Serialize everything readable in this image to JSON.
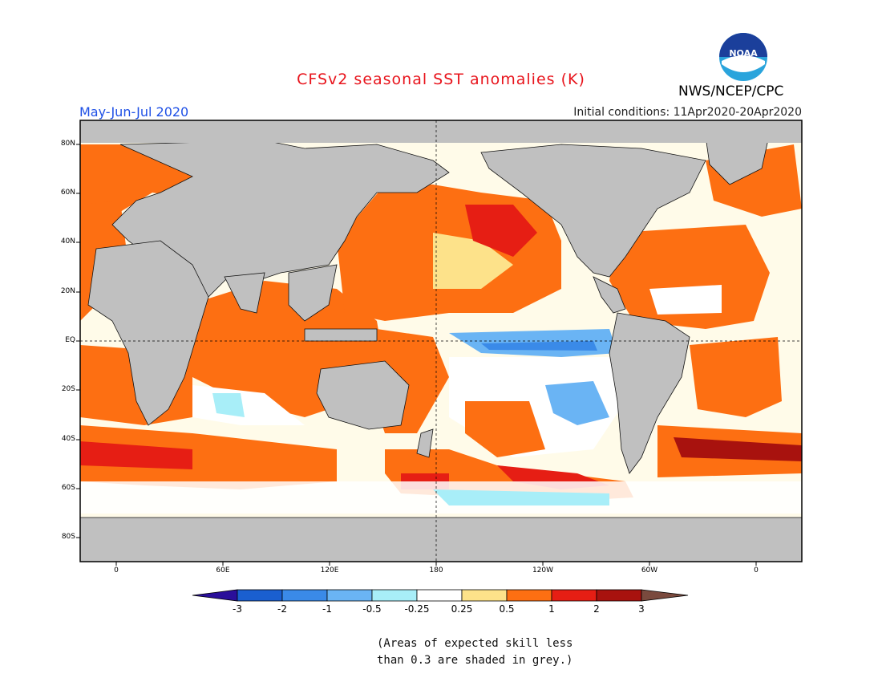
{
  "header": {
    "title": "CFSv2 seasonal SST anomalies (K)",
    "title_color": "#e8141c",
    "org": "NWS/NCEP/CPC",
    "season": "May-Jun-Jul 2020",
    "season_color": "#1e50e6",
    "initial_conditions": "Initial conditions: 11Apr2020-20Apr2020"
  },
  "logo": {
    "text": "NOAA",
    "icon": "noaa-logo-icon"
  },
  "map": {
    "type": "global-sst-anomaly-map",
    "land_color": "#c0c0c0",
    "lat_labels": [
      "80N",
      "60N",
      "40N",
      "20N",
      "EQ",
      "20S",
      "40S",
      "60S",
      "80S"
    ],
    "lon_labels": [
      "0",
      "60E",
      "120E",
      "180",
      "120W",
      "60W",
      "0"
    ]
  },
  "colorbar": {
    "labels": [
      "-3",
      "-2",
      "-1",
      "-0.5",
      "-0.25",
      "0.25",
      "0.5",
      "1",
      "2",
      "3"
    ],
    "colors": [
      "#2a0f9a",
      "#1a5fd0",
      "#3a8ae8",
      "#6ab4f4",
      "#a8eef8",
      "#ffffff",
      "#fde28a",
      "#fd6f12",
      "#e61e14",
      "#a8120e",
      "#7a4a3e"
    ]
  },
  "note": {
    "line1": "(Areas of expected skill less",
    "line2": "than 0.3 are shaded in grey.)"
  }
}
